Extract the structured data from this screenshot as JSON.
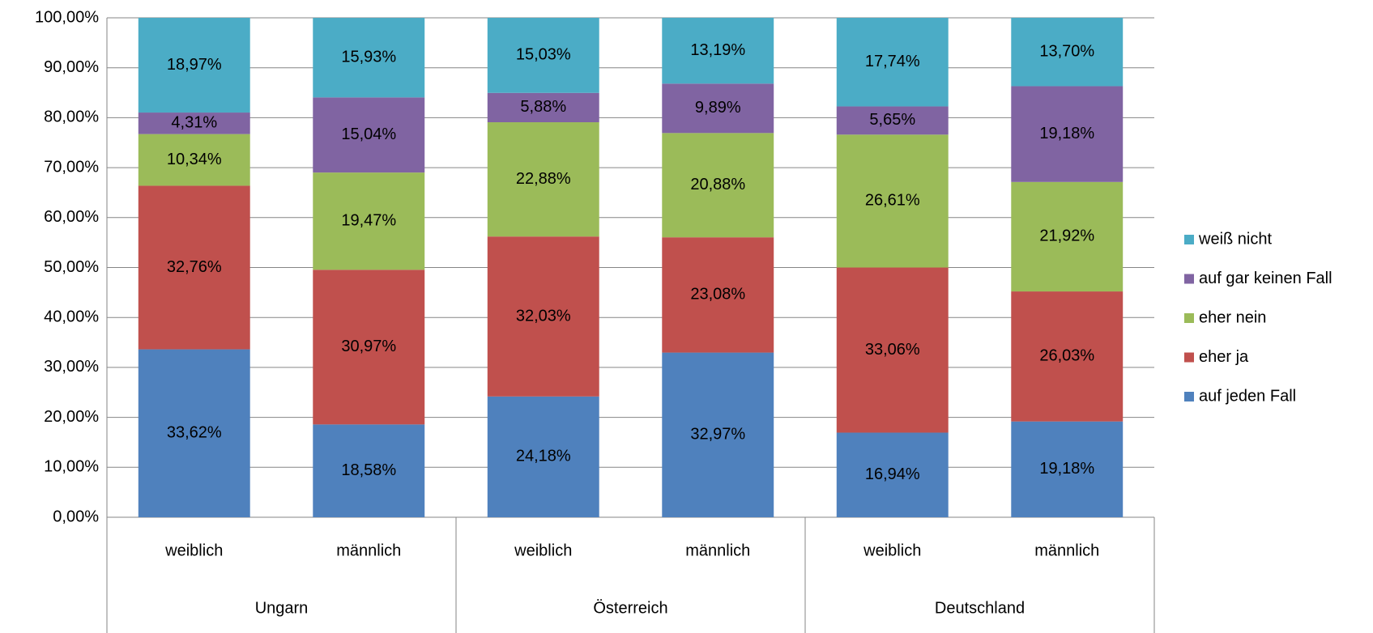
{
  "chart_data": {
    "type": "stacked_bar",
    "categories": [
      "weiblich",
      "männlich",
      "weiblich",
      "männlich",
      "weiblich",
      "männlich"
    ],
    "groups": [
      "Ungarn",
      "Österreich",
      "Deutschland"
    ],
    "series": [
      {
        "name": "auf jeden Fall",
        "color": "#4f81bd",
        "values": [
          33.62,
          18.58,
          24.18,
          32.97,
          16.94,
          19.18
        ],
        "value_labels": [
          "33,62%",
          "18,58%",
          "24,18%",
          "32,97%",
          "16,94%",
          "19,18%"
        ]
      },
      {
        "name": "eher ja",
        "color": "#c0504d",
        "values": [
          32.76,
          30.97,
          32.03,
          23.08,
          33.06,
          26.03
        ],
        "value_labels": [
          "32,76%",
          "30,97%",
          "32,03%",
          "23,08%",
          "33,06%",
          "26,03%"
        ]
      },
      {
        "name": "eher nein",
        "color": "#9bbb59",
        "values": [
          10.34,
          19.47,
          22.88,
          20.88,
          26.61,
          21.92
        ],
        "value_labels": [
          "10,34%",
          "19,47%",
          "22,88%",
          "20,88%",
          "26,61%",
          "21,92%"
        ]
      },
      {
        "name": "auf gar keinen Fall",
        "color": "#8064a2",
        "values": [
          4.31,
          15.04,
          5.88,
          9.89,
          5.65,
          19.18
        ],
        "value_labels": [
          "4,31%",
          "15,04%",
          "5,88%",
          "9,89%",
          "5,65%",
          "19,18%"
        ]
      },
      {
        "name": "weiß nicht",
        "color": "#4bacc6",
        "values": [
          18.97,
          15.93,
          15.03,
          13.19,
          17.74,
          13.7
        ],
        "value_labels": [
          "18,97%",
          "15,93%",
          "15,03%",
          "13,19%",
          "17,74%",
          "13,70%"
        ]
      }
    ],
    "ylim": [
      0,
      100
    ],
    "yticks": [
      {
        "value": 0,
        "label": "0,00%"
      },
      {
        "value": 10,
        "label": "10,00%"
      },
      {
        "value": 20,
        "label": "20,00%"
      },
      {
        "value": 30,
        "label": "30,00%"
      },
      {
        "value": 40,
        "label": "40,00%"
      },
      {
        "value": 50,
        "label": "50,00%"
      },
      {
        "value": 60,
        "label": "60,00%"
      },
      {
        "value": 70,
        "label": "70,00%"
      },
      {
        "value": 80,
        "label": "80,00%"
      },
      {
        "value": 90,
        "label": "90,00%"
      },
      {
        "value": 100,
        "label": "100,00%"
      }
    ],
    "grid": true,
    "legend": "right"
  }
}
